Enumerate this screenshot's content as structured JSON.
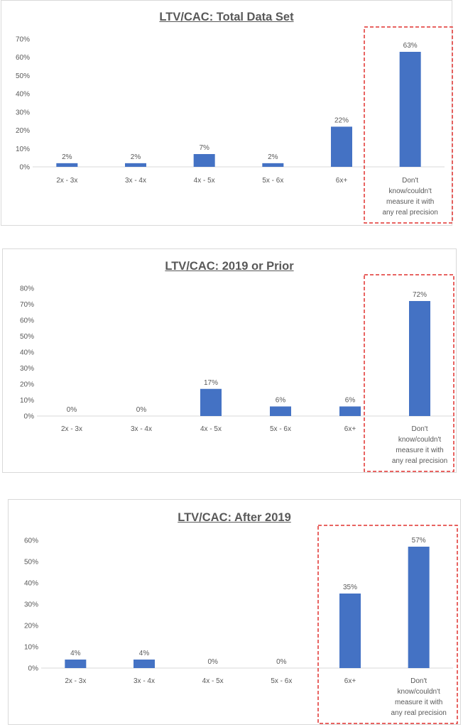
{
  "chart_data": [
    {
      "type": "bar",
      "title": "LTV/CAC: Total Data Set",
      "categories": [
        "2x - 3x",
        "3x - 4x",
        "4x - 5x",
        "5x - 6x",
        "6x+",
        "Don't know/couldn't measure it with any real precision"
      ],
      "values": [
        2,
        2,
        7,
        2,
        22,
        63
      ],
      "data_labels": [
        "2%",
        "2%",
        "7%",
        "2%",
        "22%",
        "63%"
      ],
      "ylim": [
        0,
        70
      ],
      "yticks": [
        "0%",
        "10%",
        "20%",
        "30%",
        "40%",
        "50%",
        "60%",
        "70%"
      ],
      "highlighted_categories": [
        "Don't know/couldn't measure it with any real precision"
      ],
      "grid": false,
      "color": "#4472c4",
      "highlight_color": "#e0302e"
    },
    {
      "type": "bar",
      "title": "LTV/CAC: 2019 or Prior",
      "categories": [
        "2x - 3x",
        "3x - 4x",
        "4x - 5x",
        "5x - 6x",
        "6x+",
        "Don't know/couldn't measure it with any real precision"
      ],
      "values": [
        0,
        0,
        17,
        6,
        6,
        72
      ],
      "data_labels": [
        "0%",
        "0%",
        "17%",
        "6%",
        "6%",
        "72%"
      ],
      "ylim": [
        0,
        80
      ],
      "yticks": [
        "0%",
        "10%",
        "20%",
        "30%",
        "40%",
        "50%",
        "60%",
        "70%",
        "80%"
      ],
      "highlighted_categories": [
        "Don't know/couldn't measure it with any real precision"
      ],
      "grid": false,
      "color": "#4472c4",
      "highlight_color": "#e0302e"
    },
    {
      "type": "bar",
      "title": "LTV/CAC: After 2019",
      "categories": [
        "2x - 3x",
        "3x - 4x",
        "4x - 5x",
        "5x - 6x",
        "6x+",
        "Don't know/couldn't measure it with any real precision"
      ],
      "values": [
        4,
        4,
        0,
        0,
        35,
        57
      ],
      "data_labels": [
        "4%",
        "4%",
        "0%",
        "0%",
        "35%",
        "57%"
      ],
      "ylim": [
        0,
        60
      ],
      "yticks": [
        "0%",
        "10%",
        "20%",
        "30%",
        "40%",
        "50%",
        "60%"
      ],
      "highlighted_categories": [
        "6x+",
        "Don't know/couldn't measure it with any real precision"
      ],
      "grid": false,
      "color": "#4472c4",
      "highlight_color": "#e0302e"
    }
  ]
}
